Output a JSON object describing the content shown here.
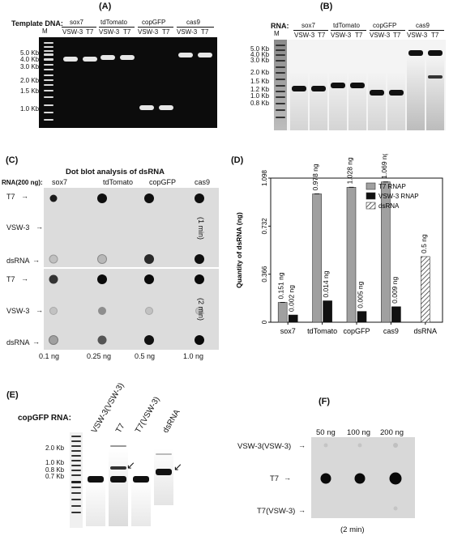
{
  "panelA": {
    "label": "(A)",
    "template_label": "Template DNA:",
    "m": "M",
    "groups": [
      "sox7",
      "tdTomato",
      "copGFP",
      "cas9"
    ],
    "lanes": [
      "VSW-3",
      "T7"
    ],
    "sizes": [
      "5.0 Kb",
      "4.0 Kb",
      "3.0 Kb",
      "2.0 Kb",
      "1.5 Kb",
      "1.0 Kb"
    ]
  },
  "panelB": {
    "label": "(B)",
    "rna_label": "RNA:",
    "m": "M",
    "groups": [
      "sox7",
      "tdTomato",
      "copGFP",
      "cas9"
    ],
    "lanes": [
      "VSW-3",
      "T7"
    ],
    "sizes": [
      "5.0 Kb",
      "4.0 Kb",
      "3.0 Kb",
      "2.0 Kb",
      "1.5 Kb",
      "1.2 Kb",
      "1.0 Kb",
      "0.8 Kb"
    ]
  },
  "panelC": {
    "label": "(C)",
    "title": "Dot blot analysis of dsRNA",
    "rna_label": "RNA(200 ng):",
    "columns": [
      "sox7",
      "tdTomato",
      "copGFP",
      "cas9"
    ],
    "rows": [
      "T7",
      "VSW-3",
      "dsRNA"
    ],
    "times": [
      "(1 min)",
      "(2 min)"
    ],
    "amounts": [
      "0.1 ng",
      "0.25 ng",
      "0.5 ng",
      "1.0 ng"
    ]
  },
  "panelD": {
    "label": "(D)"
  },
  "chart_data": {
    "type": "bar",
    "categories": [
      "sox7",
      "tdTomato",
      "copGFP",
      "cas9",
      "dsRNA"
    ],
    "ylabel": "Quantity of dsRNA (ng)",
    "ylim": [
      0,
      1.098
    ],
    "yticks": [
      "0",
      "0.366",
      "0.732",
      "1.098"
    ],
    "legend_position": "top-right",
    "series": [
      {
        "name": "T7 RNAP",
        "values": [
          0.151,
          0.978,
          1.028,
          1.069,
          null
        ],
        "labels": [
          "0.151 ng",
          "0.978 ng",
          "1.028 ng",
          "1.069 ng",
          ""
        ],
        "color": "#a0a0a0"
      },
      {
        "name": "VSW-3 RNAP",
        "values": [
          0.002,
          0.014,
          0.005,
          0.009,
          null
        ],
        "labels": [
          "0.002 ng",
          "0.014 ng",
          "0.005 ng",
          "0.009 ng",
          ""
        ],
        "color": "#111111"
      },
      {
        "name": "dsRNA",
        "values": [
          null,
          null,
          null,
          null,
          0.5
        ],
        "labels": [
          "",
          "",
          "",
          "",
          "0.5 ng"
        ],
        "color": "hatched"
      }
    ]
  },
  "panelE": {
    "label": "(E)",
    "rna_label": "copGFP RNA:",
    "lanes": [
      "VSW-3(VSW-3)",
      "T7",
      "T7(VSW-3)",
      "dsRNA"
    ],
    "sizes": [
      "2.0 Kb",
      "1.0 Kb",
      "0.8 Kb",
      "0.7 Kb"
    ]
  },
  "panelF": {
    "label": "(F)",
    "amounts": [
      "50 ng",
      "100 ng",
      "200 ng"
    ],
    "rows": [
      "VSW-3(VSW-3)",
      "T7",
      "T7(VSW-3)"
    ],
    "time": "(2 min)"
  }
}
